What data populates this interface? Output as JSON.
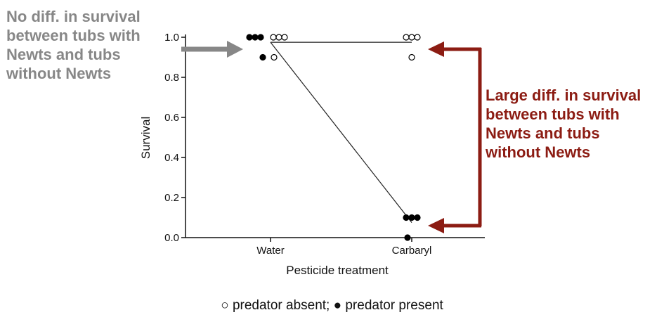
{
  "annotations": {
    "left": "No diff. in survival\nbetween tubs with\nNewts and tubs\nwithout Newts",
    "right": "Large diff. in survival\nbetween tubs with\nNewts and tubs\nwithout Newts"
  },
  "legend_text": "○ predator absent; ● predator present",
  "colors": {
    "left_arrow": "#878787",
    "right_arrow": "#8c1c13",
    "axis": "#111111"
  },
  "chart_data": {
    "type": "scatter",
    "xlabel": "Pesticide treatment",
    "ylabel": "Survival",
    "categories": [
      "Water",
      "Carbaryl"
    ],
    "ylim": [
      0,
      1
    ],
    "yticks": [
      "0.0",
      "0.2",
      "0.4",
      "0.6",
      "0.8",
      "1.0"
    ],
    "grid": false,
    "series": [
      {
        "name": "predator absent",
        "marker": "open-circle",
        "points": [
          {
            "category": "Water",
            "values": [
              1.0,
              1.0,
              1.0,
              0.9
            ]
          },
          {
            "category": "Carbaryl",
            "values": [
              1.0,
              1.0,
              1.0,
              0.9
            ]
          }
        ],
        "mean_line": [
          0.975,
          0.975
        ]
      },
      {
        "name": "predator present",
        "marker": "filled-circle",
        "points": [
          {
            "category": "Water",
            "values": [
              1.0,
              1.0,
              1.0,
              0.9
            ]
          },
          {
            "category": "Carbaryl",
            "values": [
              0.1,
              0.1,
              0.1,
              0.0
            ]
          }
        ],
        "mean_line": [
          0.975,
          0.075
        ]
      }
    ]
  }
}
